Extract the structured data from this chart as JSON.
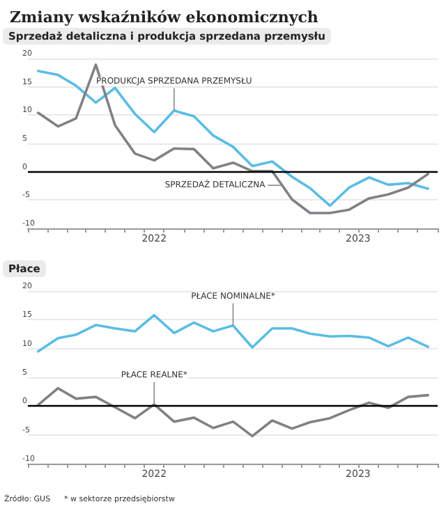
{
  "chart_data": [
    {
      "type": "line",
      "title": "Zmiany wskaźników ekonomicznych",
      "subtitle": "Sprzedaż detaliczna i produkcja sprzedana przemysłu",
      "x": [
        "2022-01",
        "2022-02",
        "2022-03",
        "2022-04",
        "2022-05",
        "2022-06",
        "2022-07",
        "2022-08",
        "2022-09",
        "2022-10",
        "2022-11",
        "2022-12",
        "2023-01",
        "2023-02",
        "2023-03",
        "2023-04",
        "2023-05",
        "2023-06",
        "2023-07",
        "2023-08",
        "2023-09"
      ],
      "series": [
        {
          "color": "#5bbde4",
          "values": [
            17.8,
            17.1,
            15.2,
            12.2,
            14.8,
            10.2,
            7.0,
            10.8,
            9.8,
            6.4,
            4.4,
            1.0,
            1.8,
            -0.9,
            -2.9,
            -6.0,
            -2.8,
            -1.0,
            -2.3,
            -2.0,
            -3.0
          ]
        },
        {
          "color": "#7f8285",
          "values": [
            10.4,
            8.0,
            9.4,
            18.9,
            8.2,
            3.2,
            2.0,
            4.1,
            4.0,
            0.6,
            1.6,
            0.1,
            0.1,
            -4.9,
            -7.3,
            -7.3,
            -6.7,
            -4.7,
            -4.0,
            -2.8,
            -0.4
          ]
        }
      ],
      "annotations": [
        {
          "text": "PRODUKCJA SPRZEDANA PRZEMYSŁU",
          "x": "2022-08",
          "y": 10.8
        },
        {
          "text": "SPRZEDAŻ DETALICZNA",
          "x": "2023-01-16",
          "y": -2.4
        }
      ],
      "xlim": [
        "2021-12-16",
        "2023-09-16"
      ],
      "xticks": [
        {
          "value": "2021-12-16",
          "label": null
        },
        {
          "value": "2022-01-16",
          "label": null
        },
        {
          "value": "2022-02-16",
          "label": null
        },
        {
          "value": "2022-03-16",
          "label": null
        },
        {
          "value": "2022-04-16",
          "label": null
        },
        {
          "value": "2022-05-16",
          "label": null
        },
        {
          "value": "2022-06-16",
          "label": null
        },
        {
          "value": "2022-07-01",
          "label": "2022"
        },
        {
          "value": "2022-07-16",
          "label": null
        },
        {
          "value": "2022-08-16",
          "label": null
        },
        {
          "value": "2022-09-16",
          "label": null
        },
        {
          "value": "2022-10-16",
          "label": null
        },
        {
          "value": "2022-11-16",
          "label": null
        },
        {
          "value": "2022-12-16",
          "label": null
        },
        {
          "value": "2023-01-16",
          "label": null
        },
        {
          "value": "2023-02-16",
          "label": null
        },
        {
          "value": "2023-03-16",
          "label": null
        },
        {
          "value": "2023-04-16",
          "label": null
        },
        {
          "value": "2023-05-15",
          "label": "2023"
        },
        {
          "value": "2023-05-16",
          "label": null
        },
        {
          "value": "2023-06-16",
          "label": null
        },
        {
          "value": "2023-07-16",
          "label": null
        },
        {
          "value": "2023-08-16",
          "label": null
        },
        {
          "value": "2023-09-16",
          "label": null
        }
      ],
      "ylim": [
        -10,
        20
      ],
      "yticks": [
        -10,
        -5,
        0,
        5,
        10,
        15,
        20
      ],
      "ref_lines": [
        {
          "axis": "y",
          "value": 0,
          "color": "#000000"
        }
      ],
      "grid": "y",
      "marker": "none",
      "line_style": "solid"
    },
    {
      "type": "line",
      "title": "Płace",
      "x": [
        "2022-01",
        "2022-02",
        "2022-03",
        "2022-04",
        "2022-05",
        "2022-06",
        "2022-07",
        "2022-08",
        "2022-09",
        "2022-10",
        "2022-11",
        "2022-12",
        "2023-01",
        "2023-02",
        "2023-03",
        "2023-04",
        "2023-05",
        "2023-06",
        "2023-07",
        "2023-08",
        "2023-09"
      ],
      "series": [
        {
          "color": "#5bbde4",
          "values": [
            9.5,
            11.8,
            12.4,
            14.1,
            13.5,
            13.0,
            15.8,
            12.7,
            14.5,
            13.0,
            14.0,
            10.2,
            13.5,
            13.5,
            12.6,
            12.1,
            12.2,
            11.9,
            10.4,
            11.9,
            10.3
          ]
        },
        {
          "color": "#7f8285",
          "values": [
            0.2,
            3.1,
            1.3,
            1.6,
            -0.2,
            -2.1,
            0.3,
            -2.7,
            -2.0,
            -3.8,
            -2.7,
            -5.2,
            -2.5,
            -3.9,
            -2.8,
            -2.1,
            -0.7,
            0.6,
            -0.3,
            1.6,
            1.9
          ]
        }
      ],
      "annotations": [
        {
          "text": "PŁACE NOMINALNE*",
          "x": "2022-11",
          "y": 14.0
        },
        {
          "text": "PŁACE REALNE*",
          "x": "2022-07",
          "y": 0.3
        },
        "Źródło: GUS",
        "* w sektorze przedsiębiorstw"
      ],
      "xlim": [
        "2021-12-16",
        "2023-09-16"
      ],
      "xticks": [
        {
          "value": "2021-12-16",
          "label": null
        },
        {
          "value": "2022-01-16",
          "label": null
        },
        {
          "value": "2022-02-16",
          "label": null
        },
        {
          "value": "2022-03-16",
          "label": null
        },
        {
          "value": "2022-04-16",
          "label": null
        },
        {
          "value": "2022-05-16",
          "label": null
        },
        {
          "value": "2022-06-16",
          "label": null
        },
        {
          "value": "2022-07-01",
          "label": "2022"
        },
        {
          "value": "2022-07-16",
          "label": null
        },
        {
          "value": "2022-08-16",
          "label": null
        },
        {
          "value": "2022-09-16",
          "label": null
        },
        {
          "value": "2022-10-16",
          "label": null
        },
        {
          "value": "2022-11-16",
          "label": null
        },
        {
          "value": "2022-12-16",
          "label": null
        },
        {
          "value": "2023-01-16",
          "label": null
        },
        {
          "value": "2023-02-16",
          "label": null
        },
        {
          "value": "2023-03-16",
          "label": null
        },
        {
          "value": "2023-04-16",
          "label": null
        },
        {
          "value": "2023-05-15",
          "label": "2023"
        },
        {
          "value": "2023-05-16",
          "label": null
        },
        {
          "value": "2023-06-16",
          "label": null
        },
        {
          "value": "2023-07-16",
          "label": null
        },
        {
          "value": "2023-08-16",
          "label": null
        },
        {
          "value": "2023-09-16",
          "label": null
        }
      ],
      "ylim": [
        -10,
        20
      ],
      "yticks": [
        -10,
        -5,
        0,
        5,
        10,
        15,
        20
      ],
      "ref_lines": [
        {
          "axis": "y",
          "value": 0,
          "color": "#000000"
        }
      ],
      "grid": "y",
      "marker": "none",
      "line_style": "solid"
    }
  ]
}
